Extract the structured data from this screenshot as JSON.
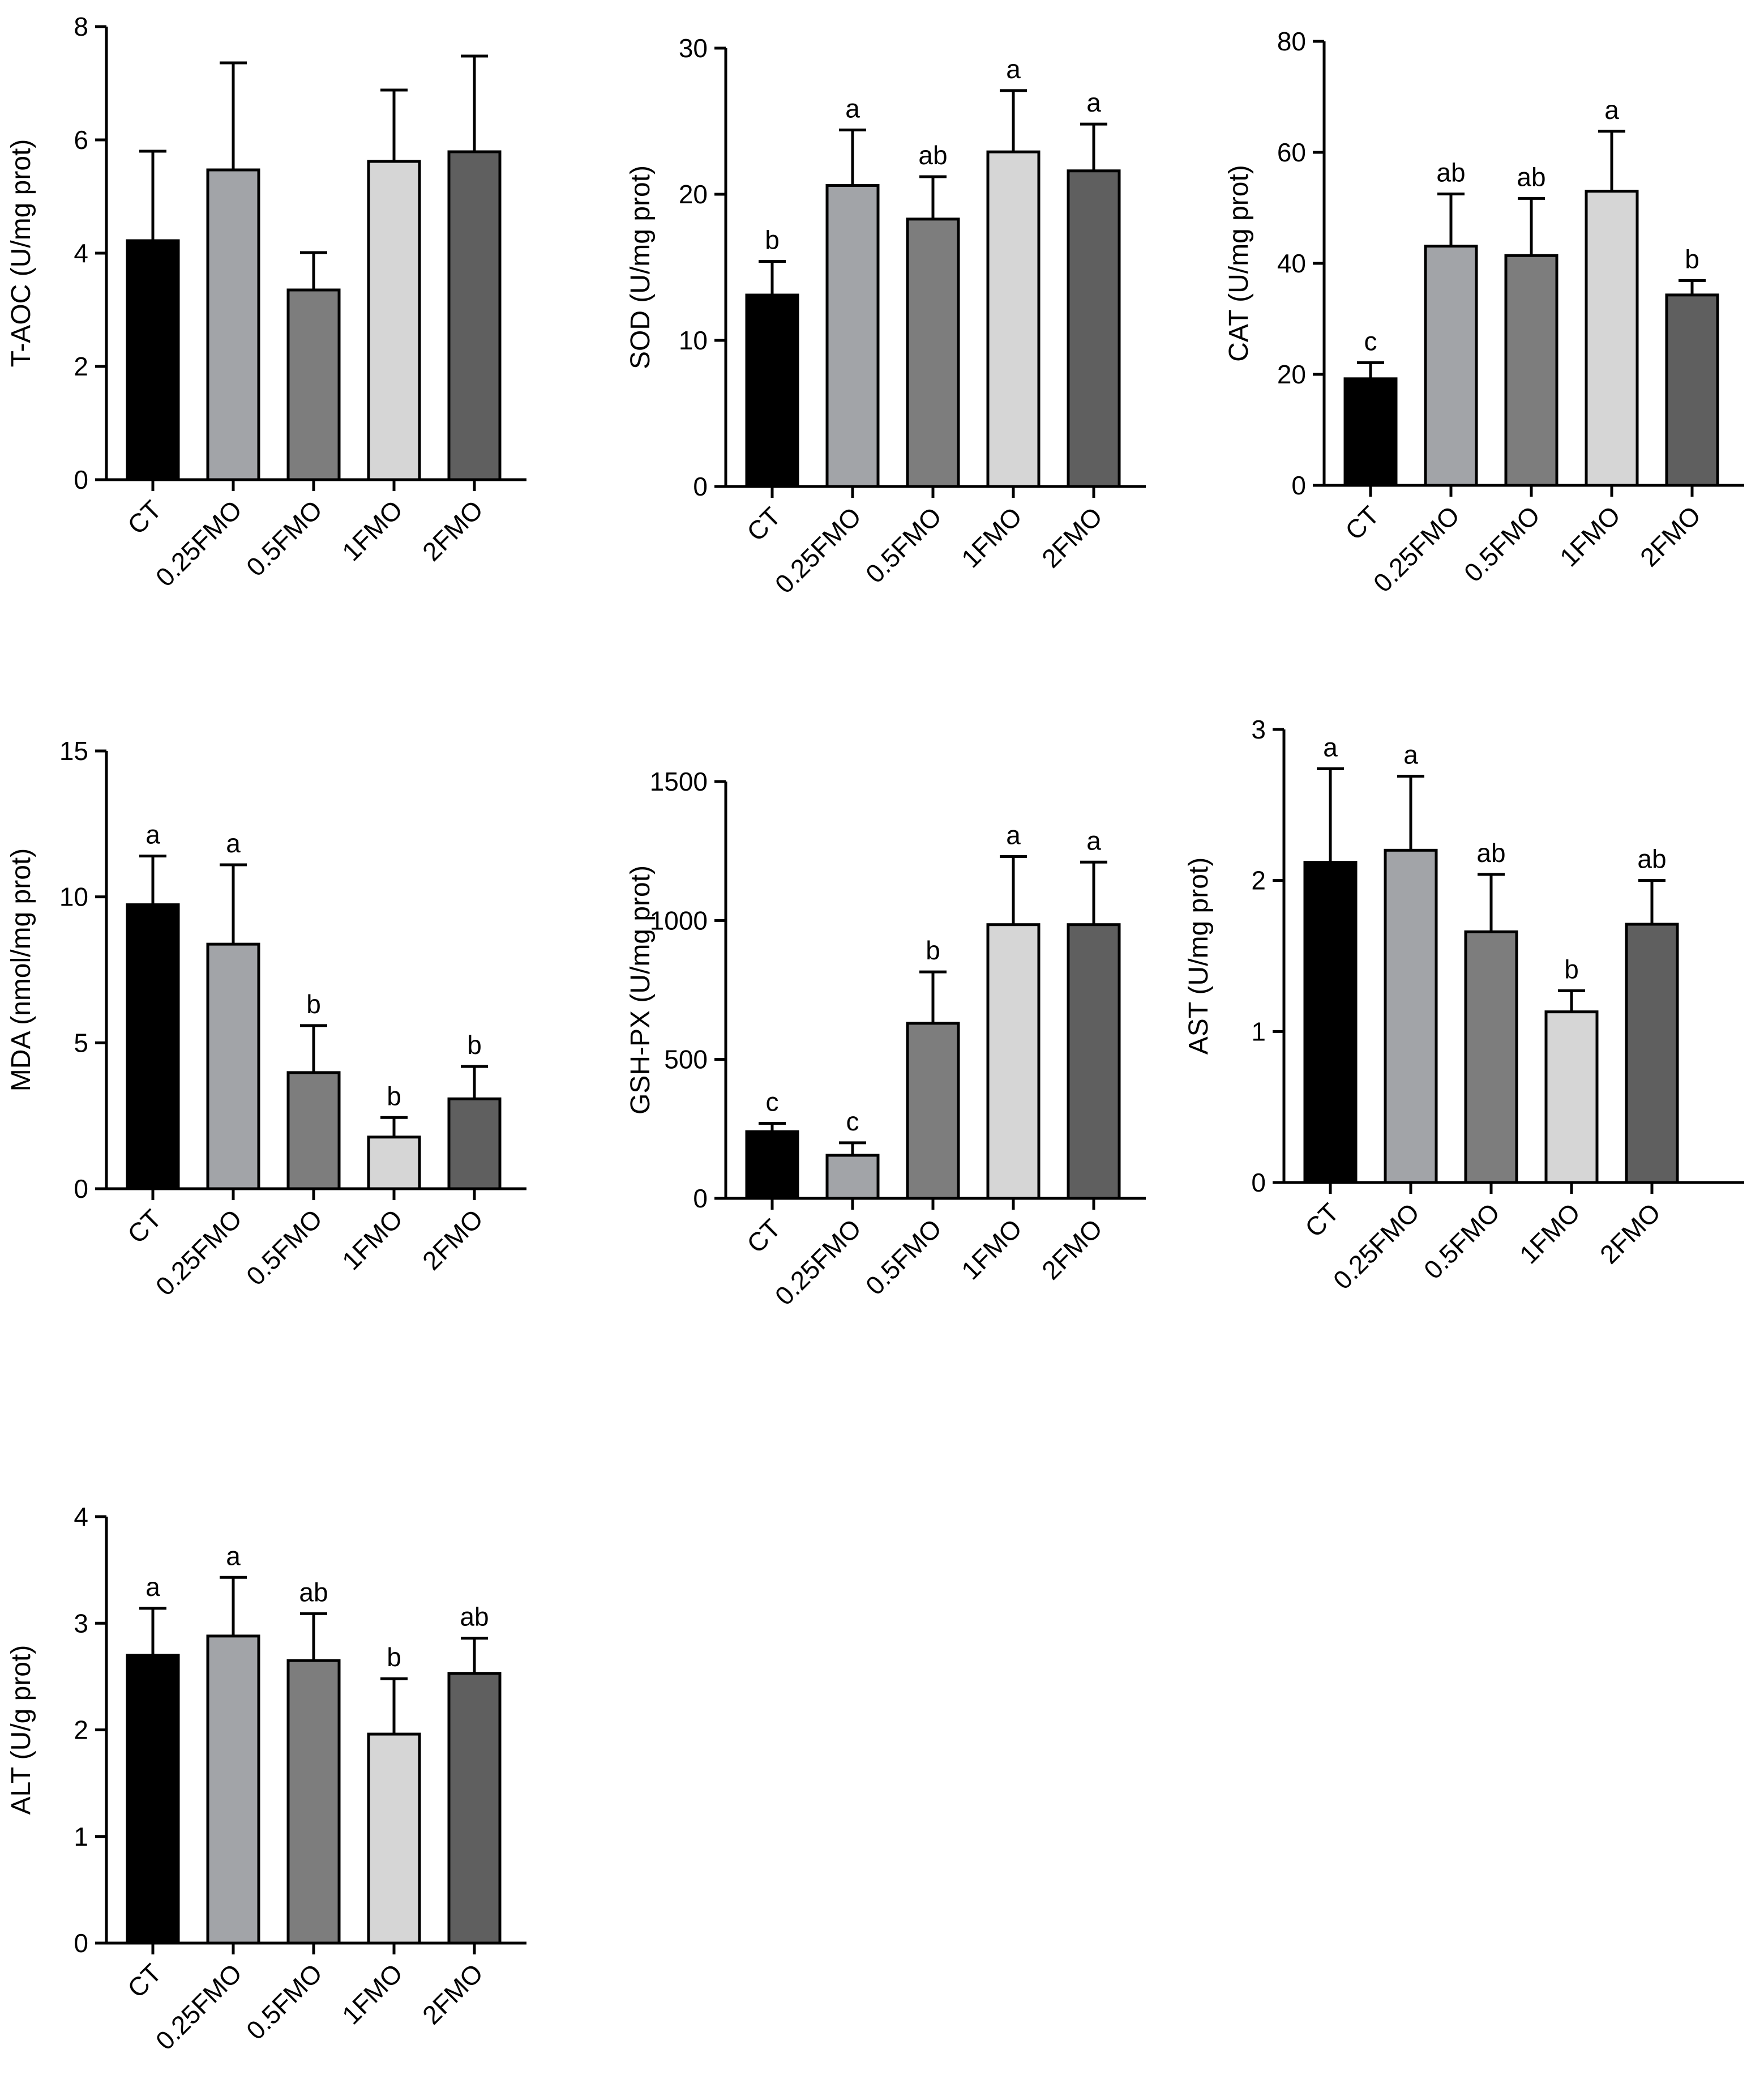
{
  "colors": {
    "bars": [
      "#000000",
      "#a2a4a8",
      "#7d7d7d",
      "#d6d6d6",
      "#5f5f5f"
    ],
    "axis": "#000000"
  },
  "chart_data": [
    {
      "id": "t-aoc",
      "type": "bar",
      "ylabel": "T-AOC (U/mg prot)",
      "categories": [
        "CT",
        "0.25FMO",
        "0.5FMO",
        "1FMO",
        "2FMO"
      ],
      "values": [
        4.22,
        5.47,
        3.35,
        5.62,
        5.79
      ],
      "errors": [
        1.58,
        1.89,
        0.66,
        1.26,
        1.69
      ],
      "significance": [
        "",
        "",
        "",
        "",
        ""
      ],
      "ylim": [
        0,
        8
      ],
      "yticks": [
        0,
        2,
        4,
        6,
        8
      ]
    },
    {
      "id": "sod",
      "type": "bar",
      "ylabel": "SOD (U/mg prot)",
      "categories": [
        "CT",
        "0.25FMO",
        "0.5FMO",
        "1FMO",
        "2FMO"
      ],
      "values": [
        13.1,
        20.6,
        18.3,
        22.9,
        21.6
      ],
      "errors": [
        2.3,
        3.8,
        2.9,
        4.2,
        3.2
      ],
      "significance": [
        "b",
        "a",
        "ab",
        "a",
        "a"
      ],
      "ylim": [
        0,
        30
      ],
      "yticks": [
        0,
        10,
        20,
        30
      ]
    },
    {
      "id": "cat",
      "type": "bar",
      "ylabel": "CAT (U/mg prot)",
      "categories": [
        "CT",
        "0.25FMO",
        "0.5FMO",
        "1FMO",
        "2FMO"
      ],
      "values": [
        19.2,
        43.1,
        41.4,
        53.0,
        34.3
      ],
      "errors": [
        2.9,
        9.4,
        10.3,
        10.8,
        2.6
      ],
      "significance": [
        "c",
        "ab",
        "ab",
        "a",
        "b"
      ],
      "ylim": [
        0,
        80
      ],
      "yticks": [
        0,
        20,
        40,
        60,
        80
      ]
    },
    {
      "id": "mda",
      "type": "bar",
      "ylabel": "MDA (nmol/mg prot)",
      "categories": [
        "CT",
        "0.25FMO",
        "0.5FMO",
        "1FMO",
        "2FMO"
      ],
      "values": [
        9.73,
        8.38,
        3.98,
        1.77,
        3.08
      ],
      "errors": [
        1.67,
        2.72,
        1.61,
        0.67,
        1.11
      ],
      "significance": [
        "a",
        "a",
        "b",
        "b",
        "b"
      ],
      "ylim": [
        0,
        15
      ],
      "yticks": [
        0,
        5,
        10,
        15
      ]
    },
    {
      "id": "gsh-px",
      "type": "bar",
      "ylabel": "GSH-PX (U/mg prot)",
      "categories": [
        "CT",
        "0.25FMO",
        "0.5FMO",
        "1FMO",
        "2FMO"
      ],
      "values": [
        240,
        155,
        630,
        985,
        985
      ],
      "errors": [
        30,
        45,
        185,
        245,
        225
      ],
      "significance": [
        "c",
        "c",
        "b",
        "a",
        "a"
      ],
      "ylim": [
        0,
        1500
      ],
      "yticks": [
        0,
        500,
        1000,
        1500
      ]
    },
    {
      "id": "ast",
      "type": "bar",
      "ylabel": "AST (U/mg prot)",
      "categories": [
        "CT",
        "0.25FMO",
        "0.5FMO",
        "1FMO",
        "2FMO"
      ],
      "values": [
        2.12,
        2.2,
        1.66,
        1.13,
        1.71
      ],
      "errors": [
        0.62,
        0.49,
        0.38,
        0.14,
        0.29
      ],
      "significance": [
        "a",
        "a",
        "ab",
        "b",
        "ab"
      ],
      "ylim": [
        0,
        3
      ],
      "yticks": [
        0,
        1,
        2,
        3
      ]
    },
    {
      "id": "alt",
      "type": "bar",
      "ylabel": "ALT (U/g prot)",
      "categories": [
        "CT",
        "0.25FMO",
        "0.5FMO",
        "1FMO",
        "2FMO"
      ],
      "values": [
        2.7,
        2.88,
        2.65,
        1.96,
        2.53
      ],
      "errors": [
        0.44,
        0.55,
        0.44,
        0.52,
        0.33
      ],
      "significance": [
        "a",
        "a",
        "ab",
        "b",
        "ab"
      ],
      "ylim": [
        0,
        4
      ],
      "yticks": [
        0,
        1,
        2,
        3,
        4
      ]
    }
  ]
}
